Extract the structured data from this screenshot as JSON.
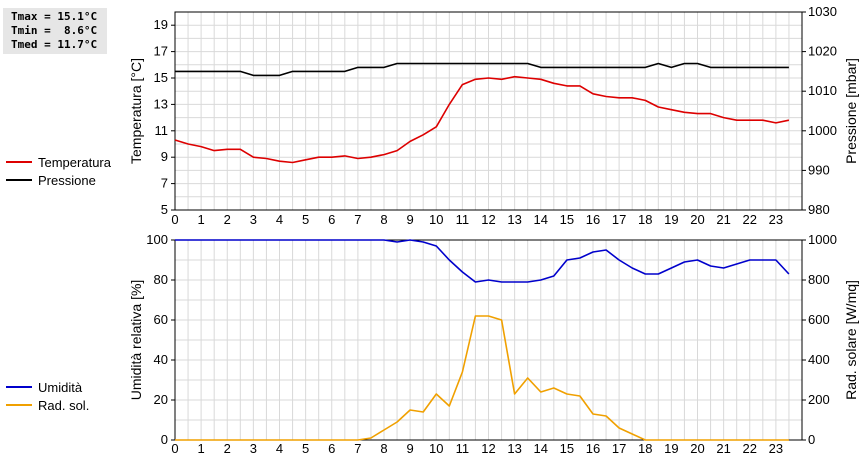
{
  "stats": {
    "tmax": "Tmax = 15.1°C",
    "tmin": "Tmin =  8.6°C",
    "tmed": "Tmed = 11.7°C"
  },
  "chart_data": [
    {
      "type": "line",
      "xlabel": "",
      "x_ticks": [
        "0",
        "1",
        "2",
        "3",
        "4",
        "5",
        "6",
        "7",
        "8",
        "9",
        "10",
        "11",
        "12",
        "13",
        "14",
        "15",
        "16",
        "17",
        "18",
        "19",
        "20",
        "21",
        "22",
        "23"
      ],
      "xlim": [
        0,
        24
      ],
      "ylabel_left": "Temperatura [°C]",
      "ylim_left": [
        5,
        20
      ],
      "yticks_left": [
        "5",
        "7",
        "9",
        "11",
        "13",
        "15",
        "17",
        "19"
      ],
      "ylabel_right": "Pressione [mbar]",
      "ylim_right": [
        980,
        1030
      ],
      "yticks_right": [
        "980",
        "990",
        "1000",
        "1010",
        "1020",
        "1030"
      ],
      "grid": true,
      "legend_position": "left",
      "series": [
        {
          "name": "Temperatura",
          "axis": "left",
          "color": "#dd0000",
          "x": [
            0,
            0.5,
            1,
            1.5,
            2,
            2.5,
            3,
            3.5,
            4,
            4.5,
            5,
            5.5,
            6,
            6.5,
            7,
            7.5,
            8,
            8.5,
            9,
            9.5,
            10,
            10.5,
            11,
            11.5,
            12,
            12.5,
            13,
            13.5,
            14,
            14.5,
            15,
            15.5,
            16,
            16.5,
            17,
            17.5,
            18,
            18.5,
            19,
            19.5,
            20,
            20.5,
            21,
            21.5,
            22,
            22.5,
            23,
            23.5
          ],
          "values": [
            10.3,
            10.0,
            9.8,
            9.5,
            9.6,
            9.6,
            9.0,
            8.9,
            8.7,
            8.6,
            8.8,
            9.0,
            9.0,
            9.1,
            8.9,
            9.0,
            9.2,
            9.5,
            10.2,
            10.7,
            11.3,
            13.0,
            14.5,
            14.9,
            15.0,
            14.9,
            15.1,
            15.0,
            14.9,
            14.6,
            14.4,
            14.4,
            13.8,
            13.6,
            13.5,
            13.5,
            13.3,
            12.8,
            12.6,
            12.4,
            12.3,
            12.3,
            12.0,
            11.8,
            11.8,
            11.8,
            11.6,
            11.8
          ]
        },
        {
          "name": "Pressione",
          "axis": "right",
          "color": "#000000",
          "x": [
            0,
            0.5,
            1,
            1.5,
            2,
            2.5,
            3,
            3.5,
            4,
            4.5,
            5,
            5.5,
            6,
            6.5,
            7,
            7.5,
            8,
            8.5,
            9,
            9.5,
            10,
            10.5,
            11,
            11.5,
            12,
            12.5,
            13,
            13.5,
            14,
            14.5,
            15,
            15.5,
            16,
            16.5,
            17,
            17.5,
            18,
            18.5,
            19,
            19.5,
            20,
            20.5,
            21,
            21.5,
            22,
            22.5,
            23,
            23.5
          ],
          "values": [
            1015,
            1015,
            1015,
            1015,
            1015,
            1015,
            1014,
            1014,
            1014,
            1015,
            1015,
            1015,
            1015,
            1015,
            1016,
            1016,
            1016,
            1017,
            1017,
            1017,
            1017,
            1017,
            1017,
            1017,
            1017,
            1017,
            1017,
            1017,
            1016,
            1016,
            1016,
            1016,
            1016,
            1016,
            1016,
            1016,
            1016,
            1017,
            1016,
            1017,
            1017,
            1016,
            1016,
            1016,
            1016,
            1016,
            1016,
            1016
          ]
        }
      ]
    },
    {
      "type": "line",
      "xlabel": "",
      "x_ticks": [
        "0",
        "1",
        "2",
        "3",
        "4",
        "5",
        "6",
        "7",
        "8",
        "9",
        "10",
        "11",
        "12",
        "13",
        "14",
        "15",
        "16",
        "17",
        "18",
        "19",
        "20",
        "21",
        "22",
        "23"
      ],
      "xlim": [
        0,
        24
      ],
      "ylabel_left": "Umidità relativa [%]",
      "ylim_left": [
        0,
        100
      ],
      "yticks_left": [
        "0",
        "20",
        "40",
        "60",
        "80",
        "100"
      ],
      "ylabel_right": "Rad. solare [W/mq]",
      "ylim_right": [
        0,
        1000
      ],
      "yticks_right": [
        "0",
        "200",
        "400",
        "600",
        "800",
        "1000"
      ],
      "grid": true,
      "legend_position": "left",
      "series": [
        {
          "name": "Umidità",
          "axis": "left",
          "color": "#0000cc",
          "x": [
            0,
            0.5,
            1,
            1.5,
            2,
            2.5,
            3,
            3.5,
            4,
            4.5,
            5,
            5.5,
            6,
            6.5,
            7,
            7.5,
            8,
            8.5,
            9,
            9.5,
            10,
            10.5,
            11,
            11.5,
            12,
            12.5,
            13,
            13.5,
            14,
            14.5,
            15,
            15.5,
            16,
            16.5,
            17,
            17.5,
            18,
            18.5,
            19,
            19.5,
            20,
            20.5,
            21,
            21.5,
            22,
            22.5,
            23,
            23.5
          ],
          "values": [
            100,
            100,
            100,
            100,
            100,
            100,
            100,
            100,
            100,
            100,
            100,
            100,
            100,
            100,
            100,
            100,
            100,
            99,
            100,
            99,
            97,
            90,
            84,
            79,
            80,
            79,
            79,
            79,
            80,
            82,
            90,
            91,
            94,
            95,
            90,
            86,
            83,
            83,
            86,
            89,
            90,
            87,
            86,
            88,
            90,
            90,
            90,
            83
          ]
        },
        {
          "name": "Rad. sol.",
          "axis": "right",
          "color": "#f0a000",
          "x": [
            0,
            0.5,
            1,
            1.5,
            2,
            2.5,
            3,
            3.5,
            4,
            4.5,
            5,
            5.5,
            6,
            6.5,
            7,
            7.5,
            8,
            8.5,
            9,
            9.5,
            10,
            10.5,
            11,
            11.5,
            12,
            12.5,
            13,
            13.5,
            14,
            14.5,
            15,
            15.5,
            16,
            16.5,
            17,
            17.5,
            18,
            18.5,
            19,
            19.5,
            20,
            20.5,
            21,
            21.5,
            22,
            22.5,
            23,
            23.5
          ],
          "values": [
            0,
            0,
            0,
            0,
            0,
            0,
            0,
            0,
            0,
            0,
            0,
            0,
            0,
            0,
            0,
            10,
            50,
            90,
            150,
            140,
            230,
            170,
            340,
            620,
            620,
            600,
            230,
            310,
            240,
            260,
            230,
            220,
            130,
            120,
            60,
            30,
            0,
            0,
            0,
            0,
            0,
            0,
            0,
            0,
            0,
            0,
            0,
            0
          ]
        }
      ]
    }
  ]
}
